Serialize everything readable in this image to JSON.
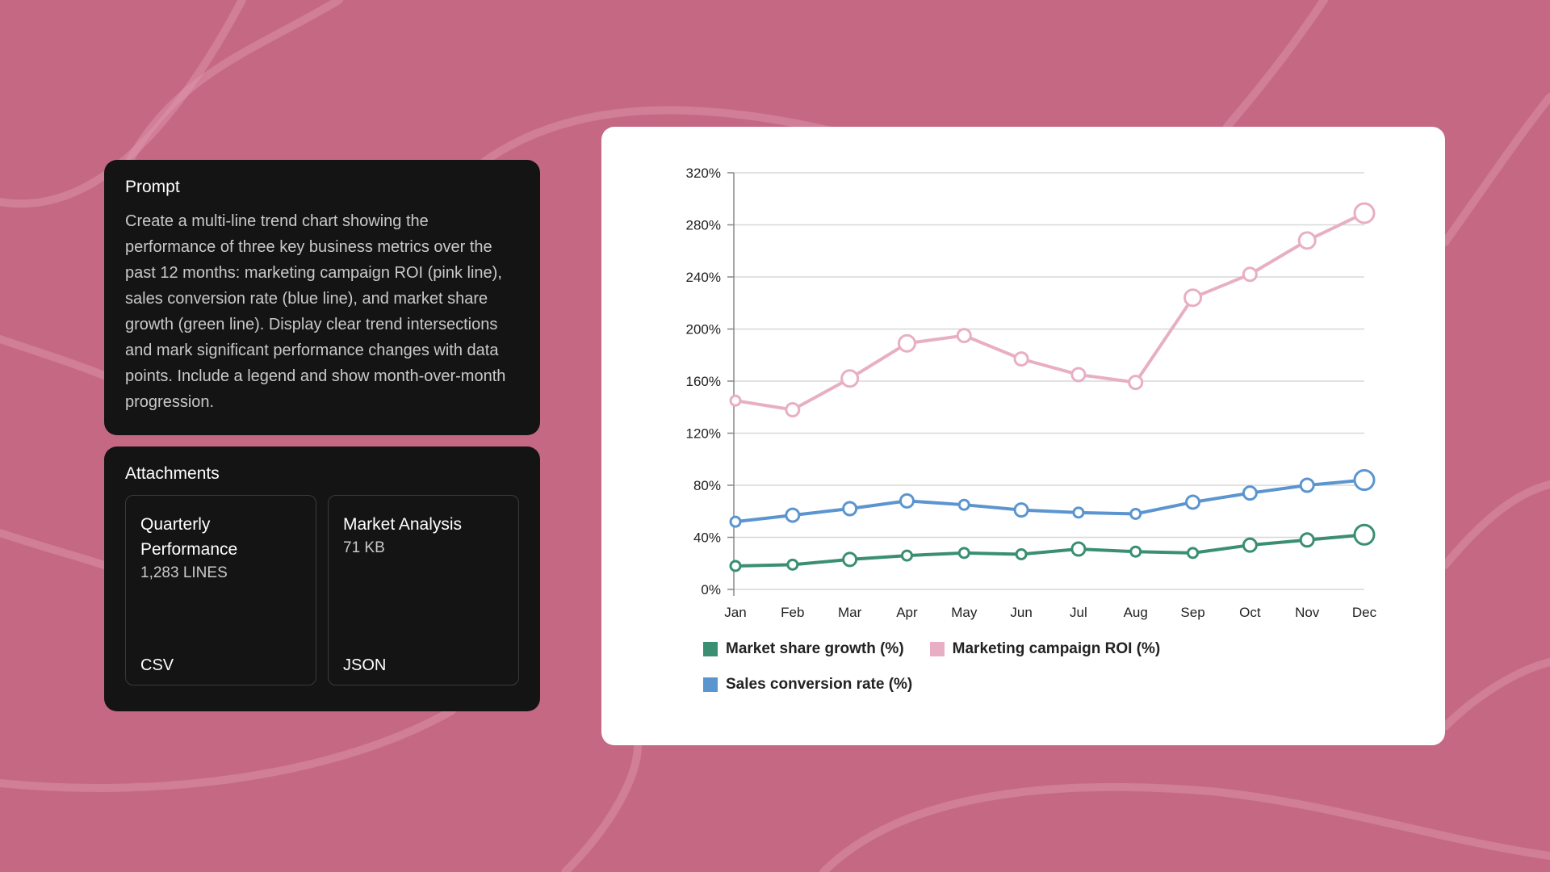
{
  "prompt": {
    "title": "Prompt",
    "text": "Create a multi-line trend chart showing the performance of three key business metrics over the past 12 months: marketing campaign ROI (pink line), sales conversion rate (blue line), and market share growth (green line). Display clear trend intersections and mark significant performance changes with data points. Include a legend and show month-over-month progression."
  },
  "attachments": {
    "title": "Attachments",
    "items": [
      {
        "name": "Quarterly Performance",
        "meta": "1,283 LINES",
        "type": "CSV"
      },
      {
        "name": "Market Analysis",
        "meta": "71 KB",
        "type": "JSON"
      }
    ]
  },
  "chart_data": {
    "type": "line",
    "categories": [
      "Jan",
      "Feb",
      "Mar",
      "Apr",
      "May",
      "Jun",
      "Jul",
      "Aug",
      "Sep",
      "Oct",
      "Nov",
      "Dec"
    ],
    "ylim": [
      0,
      320
    ],
    "yticks": [
      "0%",
      "40%",
      "80%",
      "120%",
      "160%",
      "200%",
      "240%",
      "280%",
      "320%"
    ],
    "ytick_values": [
      0,
      40,
      80,
      120,
      160,
      200,
      240,
      280,
      320
    ],
    "grid": true,
    "legend_position": "bottom-left",
    "series": [
      {
        "name": "Market share growth (%)",
        "color": "#3a8f72",
        "values": [
          18,
          19,
          23,
          26,
          28,
          27,
          31,
          29,
          28,
          34,
          38,
          42
        ]
      },
      {
        "name": "Marketing campaign ROI (%)",
        "color": "#e8afc4",
        "values": [
          145,
          138,
          162,
          189,
          195,
          177,
          165,
          159,
          224,
          242,
          268,
          289
        ]
      },
      {
        "name": "Sales conversion rate (%)",
        "color": "#5b95cf",
        "values": [
          52,
          57,
          62,
          68,
          65,
          61,
          59,
          58,
          67,
          74,
          80,
          84
        ]
      }
    ]
  }
}
